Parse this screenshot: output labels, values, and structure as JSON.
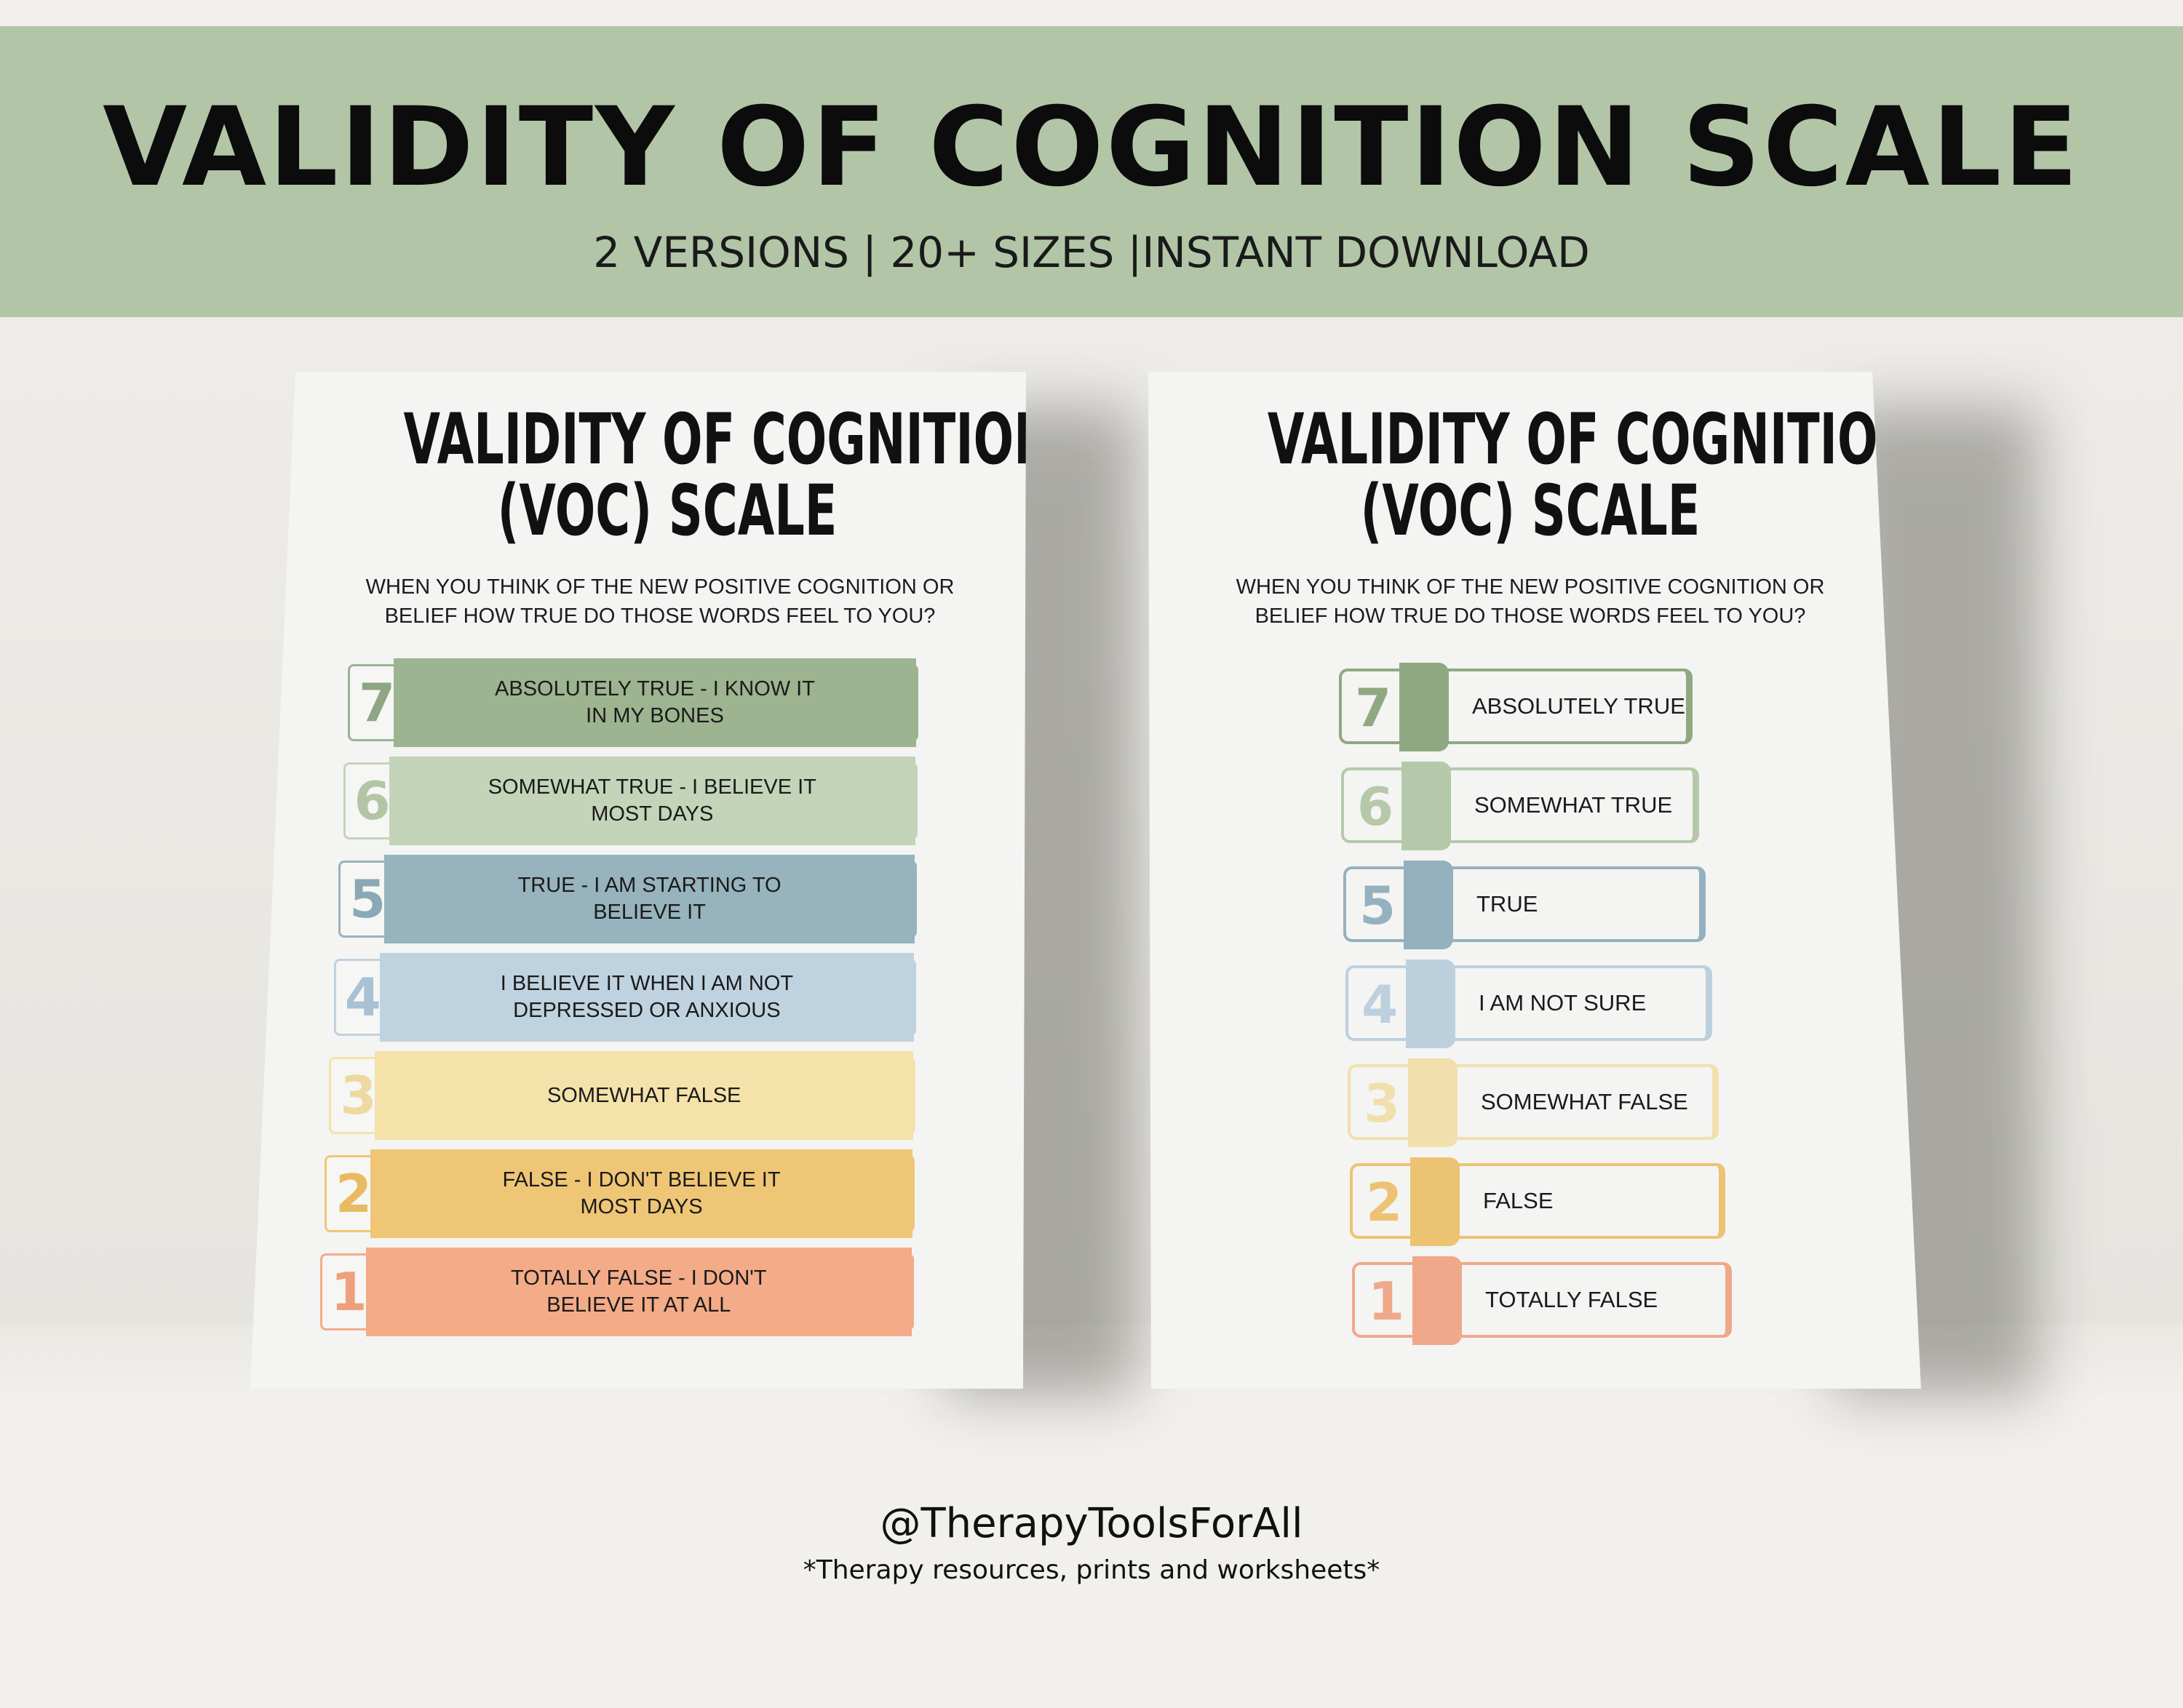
{
  "banner": {
    "title": "VALIDITY OF COGNITION SCALE",
    "subtitle": "2 VERSIONS | 20+ SIZES |INSTANT DOWNLOAD",
    "background_color": "#b2c6a7"
  },
  "poster_left": {
    "title_line1": "VALIDITY OF COGNITION",
    "title_line2": "(VOC) SCALE",
    "question_line1": "WHEN YOU THINK OF THE NEW POSITIVE COGNITION OR",
    "question_line2": "BELIEF HOW TRUE DO THOSE WORDS FEEL TO YOU?",
    "rows": [
      {
        "number": "7",
        "line1": "ABSOLUTELY TRUE - I KNOW IT",
        "line2": "IN MY BONES",
        "color": "#9db490",
        "num_color": "#8fa583"
      },
      {
        "number": "6",
        "line1": "SOMEWHAT TRUE - I BELIEVE IT",
        "line2": "MOST DAYS",
        "color": "#c3d4b9",
        "num_color": "#b2c6a6"
      },
      {
        "number": "5",
        "line1": "TRUE - I AM STARTING TO",
        "line2": "BELIEVE IT",
        "color": "#97b3bd",
        "num_color": "#8aa8b5"
      },
      {
        "number": "4",
        "line1": "I BELIEVE IT WHEN I AM NOT",
        "line2": "DEPRESSED OR ANXIOUS",
        "color": "#bfd2df",
        "num_color": "#aac1d4"
      },
      {
        "number": "3",
        "line1": "SOMEWHAT FALSE",
        "line2": "",
        "color": "#f4e2aa",
        "num_color": "#eed9a0"
      },
      {
        "number": "2",
        "line1": "FALSE - I DON'T BELIEVE IT",
        "line2": "MOST DAYS",
        "color": "#efc676",
        "num_color": "#e8bb62"
      },
      {
        "number": "1",
        "line1": "TOTALLY FALSE - I DON'T",
        "line2": "BELIEVE IT AT ALL",
        "color": "#f3ab88",
        "num_color": "#eea07c"
      }
    ]
  },
  "poster_right": {
    "title_line1": "VALIDITY OF COGNITION",
    "title_line2": "(VOC) SCALE",
    "question_line1": "WHEN YOU THINK OF THE NEW POSITIVE COGNITION OR",
    "question_line2": "BELIEF HOW TRUE DO THOSE WORDS FEEL TO YOU?",
    "rows": [
      {
        "number": "7",
        "label": "ABSOLUTELY TRUE",
        "color": "#8fa882"
      },
      {
        "number": "6",
        "label": "SOMEWHAT TRUE",
        "color": "#b5c9aa"
      },
      {
        "number": "5",
        "label": "TRUE",
        "color": "#95b1bf"
      },
      {
        "number": "4",
        "label": "I AM NOT SURE",
        "color": "#bdd0de"
      },
      {
        "number": "3",
        "label": "SOMEWHAT FALSE",
        "color": "#f1e0ae"
      },
      {
        "number": "2",
        "label": "FALSE",
        "color": "#ecc373"
      },
      {
        "number": "1",
        "label": "TOTALLY FALSE",
        "color": "#efa98a"
      }
    ]
  },
  "footer": {
    "handle": "@TherapyToolsForAll",
    "tagline": "*Therapy resources, prints and worksheets*"
  }
}
